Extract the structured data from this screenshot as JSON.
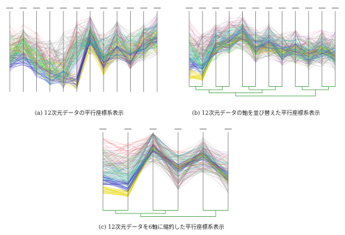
{
  "figure": {
    "panels": [
      {
        "id": "a",
        "caption": "(a) 12次元データの平行座標系表示",
        "axis_count": 12,
        "has_dendrogram": false
      },
      {
        "id": "b",
        "caption": "(b) 12次元データの軸を並び替えた平行座標系表示",
        "axis_count": 12,
        "has_dendrogram": true
      },
      {
        "id": "c",
        "caption": "(c) 12次元データを6軸に縮約した平行座標系表示",
        "axis_count": 6,
        "has_dendrogram": true
      }
    ],
    "colors": {
      "axis": "#555555",
      "dendrogram": "#3a9a3a",
      "lines": [
        "#e8d800",
        "#1e1ecc",
        "#00c0c0",
        "#50e050",
        "#e05050",
        "#a050c0",
        "#404080",
        "#707070",
        "#c0a060"
      ]
    }
  }
}
